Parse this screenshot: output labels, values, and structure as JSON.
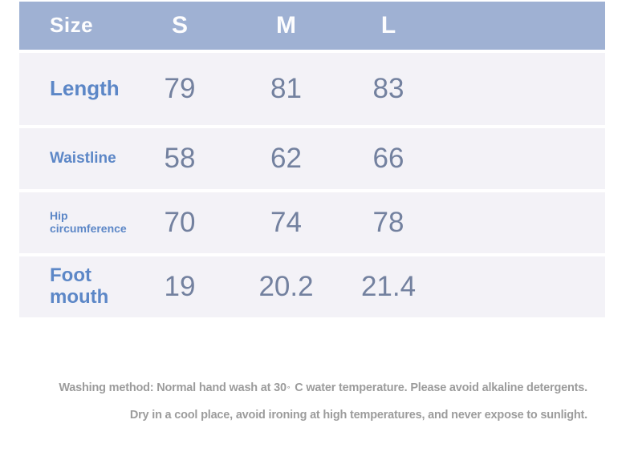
{
  "table": {
    "header": {
      "size_label": "Size",
      "columns": [
        "S",
        "M",
        "L"
      ]
    },
    "rows": [
      {
        "label": "Length",
        "values": [
          "79",
          "81",
          "83"
        ]
      },
      {
        "label": "Waistline",
        "values": [
          "58",
          "62",
          "66"
        ]
      },
      {
        "label": "Hip circumference",
        "values": [
          "70",
          "74",
          "78"
        ]
      },
      {
        "label": "Foot mouth",
        "values": [
          "19",
          "20.2",
          "21.4"
        ]
      }
    ]
  },
  "care_instructions": {
    "line1_pre": "Washing method: Normal hand wash at 30",
    "line1_degree": "°",
    "line1_post": "C water temperature. Please avoid alkaline detergents.",
    "line2": "Dry in a cool place, avoid ironing at high temperatures, and never expose to sunlight."
  },
  "colors": {
    "header_bg": "#9fb1d3",
    "row_bg": "#f3f2f7",
    "header_text": "#fdfdfe",
    "label_text": "#5c87c7",
    "value_text": "#73819f",
    "care_text": "#9c9c9c"
  },
  "chart_data": {
    "type": "table",
    "title": "Size",
    "columns": [
      "Size",
      "S",
      "M",
      "L"
    ],
    "rows": [
      [
        "Length",
        79,
        81,
        83
      ],
      [
        "Waistline",
        58,
        62,
        66
      ],
      [
        "Hip circumference",
        70,
        74,
        78
      ],
      [
        "Foot mouth",
        19,
        20.2,
        21.4
      ]
    ],
    "notes": [
      "Washing method: Normal hand wash at 30°C water temperature. Please avoid alkaline detergents.",
      "Dry in a cool place, avoid ironing at high temperatures, and never expose to sunlight."
    ]
  }
}
